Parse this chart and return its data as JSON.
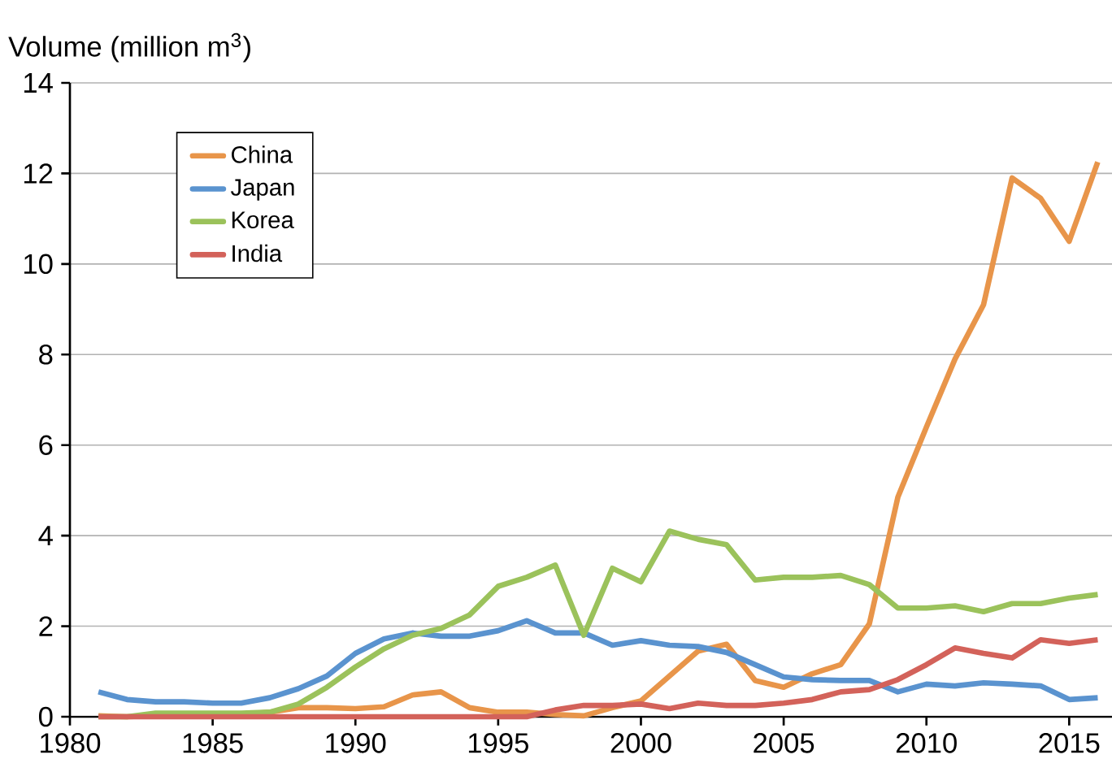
{
  "chart_data": {
    "type": "line",
    "ylabel": "Volume (million m$^{3}$)",
    "x": [
      1981,
      1982,
      1983,
      1984,
      1985,
      1986,
      1987,
      1988,
      1989,
      1990,
      1991,
      1992,
      1993,
      1994,
      1995,
      1996,
      1997,
      1998,
      1999,
      2000,
      2001,
      2002,
      2003,
      2004,
      2005,
      2006,
      2007,
      2008,
      2009,
      2010,
      2011,
      2012,
      2013,
      2014,
      2015,
      2016
    ],
    "series": [
      {
        "name": "China",
        "color": "#e8954a",
        "values": [
          0.02,
          0.0,
          0.02,
          0.05,
          0.05,
          0.05,
          0.1,
          0.2,
          0.2,
          0.18,
          0.22,
          0.48,
          0.55,
          0.2,
          0.1,
          0.1,
          0.05,
          0.02,
          0.2,
          0.35,
          0.9,
          1.45,
          1.6,
          0.8,
          0.65,
          0.95,
          1.15,
          2.05,
          4.85,
          6.4,
          7.9,
          9.1,
          11.9,
          11.45,
          10.5,
          12.25
        ]
      },
      {
        "name": "Japan",
        "color": "#5a93cf",
        "values": [
          0.55,
          0.38,
          0.33,
          0.33,
          0.3,
          0.3,
          0.42,
          0.62,
          0.9,
          1.4,
          1.72,
          1.85,
          1.78,
          1.78,
          1.9,
          2.12,
          1.85,
          1.85,
          1.58,
          1.68,
          1.58,
          1.55,
          1.42,
          1.15,
          0.88,
          0.82,
          0.8,
          0.8,
          0.55,
          0.72,
          0.68,
          0.75,
          0.72,
          0.68,
          0.38,
          0.42
        ]
      },
      {
        "name": "Korea",
        "color": "#9bc25b",
        "values": [
          0.0,
          0.0,
          0.08,
          0.08,
          0.08,
          0.08,
          0.1,
          0.28,
          0.65,
          1.1,
          1.5,
          1.8,
          1.95,
          2.25,
          2.88,
          3.08,
          3.35,
          1.8,
          3.28,
          2.98,
          4.1,
          3.92,
          3.8,
          3.02,
          3.08,
          3.08,
          3.12,
          2.92,
          2.4,
          2.4,
          2.45,
          2.32,
          2.5,
          2.5,
          2.62,
          2.7
        ]
      },
      {
        "name": "India",
        "color": "#d3625a",
        "values": [
          0,
          0,
          0,
          0,
          0,
          0,
          0,
          0,
          0,
          0,
          0,
          0,
          0,
          0,
          0,
          0,
          0.15,
          0.25,
          0.25,
          0.28,
          0.18,
          0.3,
          0.25,
          0.25,
          0.3,
          0.38,
          0.55,
          0.6,
          0.82,
          1.15,
          1.52,
          1.4,
          1.3,
          1.7,
          1.62,
          1.7
        ]
      }
    ],
    "xlim": [
      1980,
      2016.5
    ],
    "xticks": [
      1980,
      1985,
      1990,
      1995,
      2000,
      2005,
      2010,
      2015
    ],
    "ylim": [
      0,
      14
    ],
    "yticks": [
      0,
      2,
      4,
      6,
      8,
      10,
      12,
      14
    ],
    "grid": "y",
    "legend": "top left",
    "marker": "none",
    "line_style": "solid"
  }
}
